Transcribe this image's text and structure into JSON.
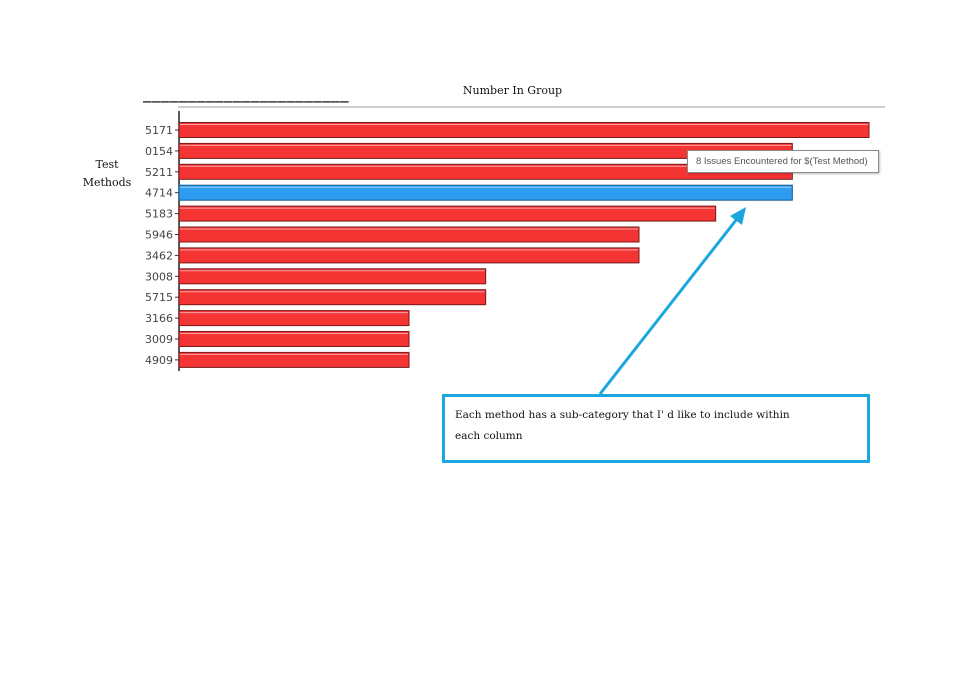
{
  "chart_data": {
    "type": "bar",
    "orientation": "horizontal",
    "title": "Number In Group",
    "ylabel": "Test Methods",
    "categories": [
      "5171",
      "0154",
      "5211",
      "4714",
      "5183",
      "5946",
      "3462",
      "3008",
      "5715",
      "3166",
      "3009",
      "4909"
    ],
    "values": [
      9,
      8,
      8,
      8,
      7,
      6,
      6,
      4,
      4,
      3,
      3,
      3
    ],
    "xlim": [
      0,
      9
    ],
    "highlighted_category": "4714",
    "colors": {
      "bar": "#f53434",
      "highlight": "#2b9cf0",
      "bar_edge": "#7a1a1a",
      "highlight_edge": "#1a5a8a"
    },
    "tooltip": "8 Issues Encountered for $(Test Method)",
    "grid": false
  },
  "annotation": {
    "line1": "Each method has a sub-category that I' d like to include within",
    "line2": "each column",
    "color": "#1ba6e0"
  }
}
